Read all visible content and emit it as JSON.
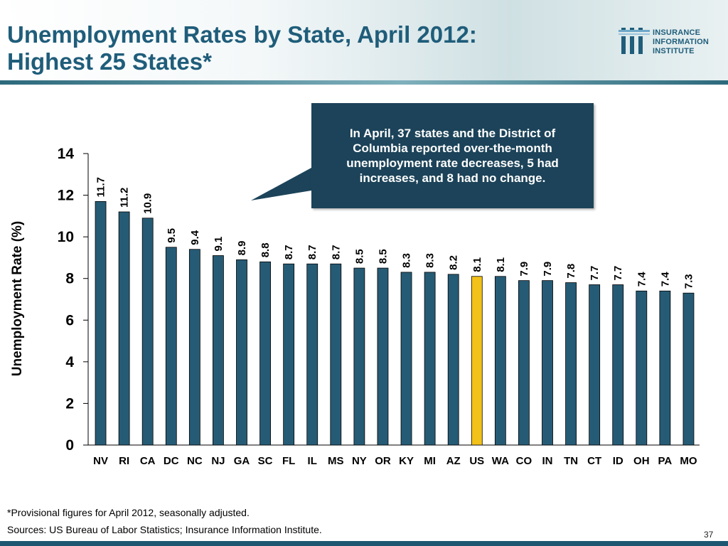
{
  "title": {
    "line1": "Unemployment Rates by State, April 2012:",
    "line2": "Highest 25 States*"
  },
  "logo": {
    "line1": "INSURANCE",
    "line2": "INFORMATION",
    "line3": "INSTITUTE",
    "icon": "iii-logo-icon"
  },
  "callout": {
    "text": "In April, 37 states and the District of Columbia reported over-the-month unemployment rate decreases, 5 had increases, and 8 had no change."
  },
  "footnote": "*Provisional figures for April 2012, seasonally adjusted.",
  "sources": "Sources:  US Bureau of Labor Statistics; Insurance Information Institute.",
  "page_number": "37",
  "colors": {
    "bar": "#265b75",
    "highlight_bar": "#f2c11a",
    "title": "#1f5d7a",
    "callout_bg": "#1c4359"
  },
  "chart_data": {
    "type": "bar",
    "ylabel": "Unemployment Rate (%)",
    "ylim": [
      0,
      14
    ],
    "yticks": [
      0,
      2,
      4,
      6,
      8,
      10,
      12,
      14
    ],
    "categories": [
      "NV",
      "RI",
      "CA",
      "DC",
      "NC",
      "NJ",
      "GA",
      "SC",
      "FL",
      "IL",
      "MS",
      "NY",
      "OR",
      "KY",
      "MI",
      "AZ",
      "US",
      "WA",
      "CO",
      "IN",
      "TN",
      "CT",
      "ID",
      "OH",
      "PA",
      "MO"
    ],
    "values": [
      11.7,
      11.2,
      10.9,
      9.5,
      9.4,
      9.1,
      8.9,
      8.8,
      8.7,
      8.7,
      8.7,
      8.5,
      8.5,
      8.3,
      8.3,
      8.2,
      8.1,
      8.1,
      7.9,
      7.9,
      7.8,
      7.7,
      7.7,
      7.4,
      7.4,
      7.3
    ],
    "value_labels": [
      "11.7",
      "11.2",
      "10.9",
      "9.5",
      "9.4",
      "9.1",
      "8.9",
      "8.8",
      "8.7",
      "8.7",
      "8.7",
      "8.5",
      "8.5",
      "8.3",
      "8.3",
      "8.2",
      "8.1",
      "8.1",
      "7.9",
      "7.9",
      "7.8",
      "7.7",
      "7.7",
      "7.4",
      "7.4",
      "7.3"
    ],
    "highlight_category": "US",
    "grid": false,
    "legend": "none"
  }
}
